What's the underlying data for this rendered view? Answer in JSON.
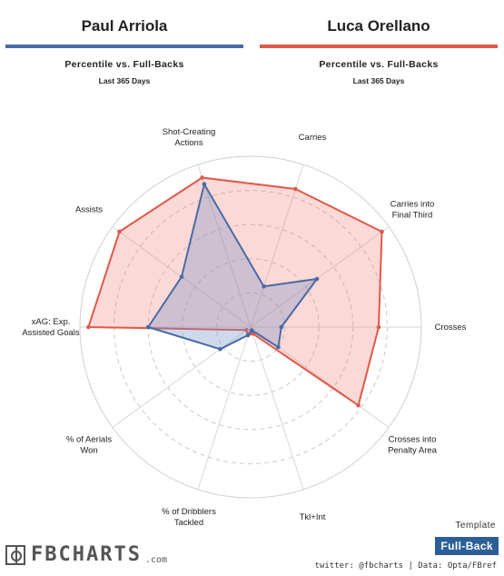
{
  "players": [
    {
      "name": "Paul Arriola",
      "color": "#4a6aa5",
      "fill": "rgba(120,145,200,0.35)"
    },
    {
      "name": "Luca Orellano",
      "color": "#e0584a",
      "fill": "rgba(240,130,120,0.30)"
    }
  ],
  "subtitle": "Percentile vs. Full-Backs",
  "period": "Last 365 Days",
  "template_label": "Template",
  "template_value": "Full-Back",
  "credit": "twitter: @fbcharts | Data: Opta/FBref",
  "logo_text": "FBCHARTS",
  "logo_suffix": ".com",
  "chart_data": {
    "type": "radar",
    "axes": [
      "Carries",
      "Carries into\nFinal Third",
      "Crosses",
      "Crosses into\nPenalty Area",
      "Tkl+Int",
      "% of Dribblers\nTackled",
      "% of Aerials\nWon",
      "xAG: Exp.\nAssisted Goals",
      "Assists",
      "Shot-Creating\nActions"
    ],
    "rlim": [
      0,
      100
    ],
    "grid_rings": 5,
    "series": [
      {
        "name": "Paul Arriola",
        "values": [
          25,
          48,
          18,
          20,
          2,
          5,
          22,
          60,
          50,
          88
        ]
      },
      {
        "name": "Luca Orellano",
        "values": [
          85,
          95,
          75,
          78,
          4,
          5,
          3,
          95,
          95,
          92
        ]
      }
    ]
  }
}
